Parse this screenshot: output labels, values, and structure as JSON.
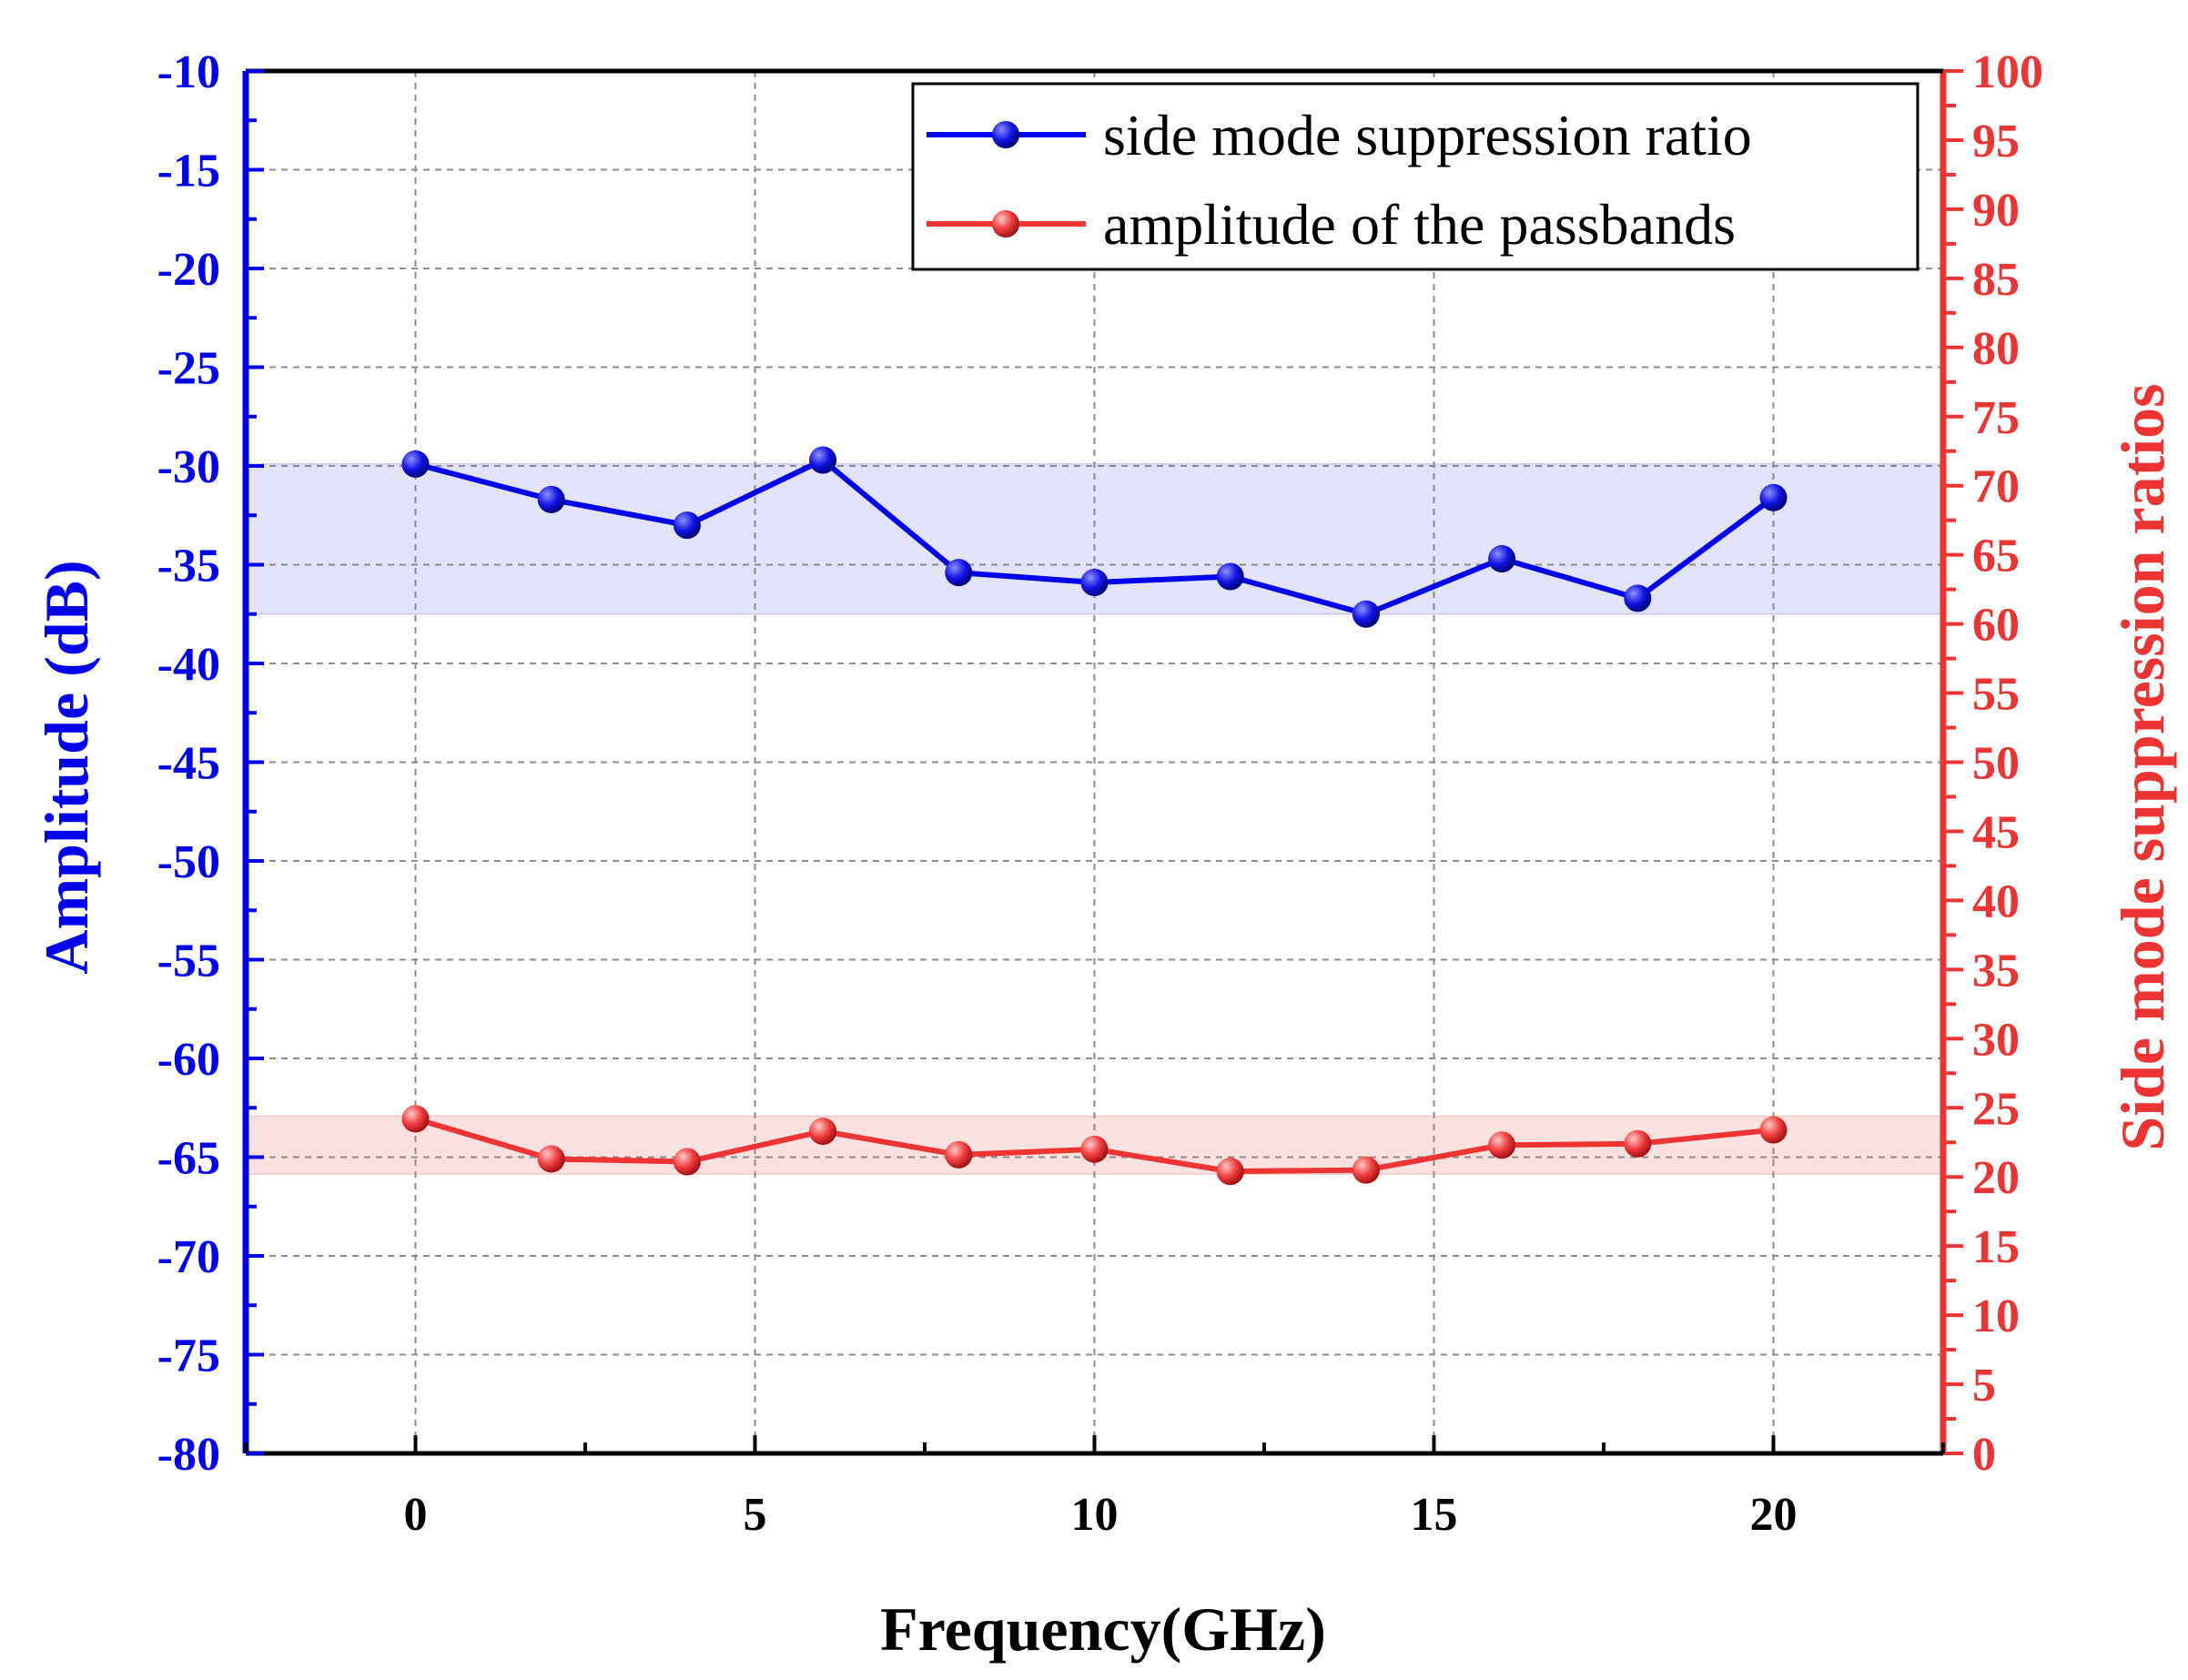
{
  "chart_data": {
    "type": "line",
    "title": "",
    "xlabel": "Frequency(GHz)",
    "ylabel_left": "Amplitude (dB)",
    "ylabel_right": "Side mode suppression ratios",
    "xlim": [
      -2.5,
      22.5
    ],
    "ylim_left": [
      -80,
      -10
    ],
    "ylim_right": [
      0,
      100
    ],
    "x_ticks": [
      "0",
      "5",
      "10",
      "15",
      "20"
    ],
    "y_ticks_left": [
      "-10",
      "-15",
      "-20",
      "-25",
      "-30",
      "-35",
      "-40",
      "-45",
      "-50",
      "-55",
      "-60",
      "-65",
      "-70",
      "-75",
      "-80"
    ],
    "y_ticks_right": [
      "100",
      "95",
      "90",
      "85",
      "80",
      "75",
      "70",
      "65",
      "60",
      "55",
      "50",
      "45",
      "40",
      "35",
      "30",
      "25",
      "20",
      "15",
      "10",
      "5",
      "0"
    ],
    "grid": true,
    "legend_position": "top-right",
    "series": [
      {
        "name": "side mode suppression ratio",
        "color": "#0000ee",
        "axis": "left",
        "x": [
          0,
          2,
          4,
          6,
          8,
          10,
          12,
          14,
          16,
          18,
          20
        ],
        "y": [
          -29.9,
          -31.7,
          -33.0,
          -29.7,
          -35.4,
          -35.9,
          -35.6,
          -37.5,
          -34.7,
          -36.7,
          -31.6
        ],
        "band": [
          -37.5,
          -29.9
        ]
      },
      {
        "name": "amplitude of the passbands",
        "color": "#ee3333",
        "axis": "right",
        "x": [
          0,
          2,
          4,
          6,
          8,
          10,
          12,
          14,
          16,
          18,
          20
        ],
        "y": [
          24.2,
          21.3,
          21.1,
          23.3,
          21.6,
          22.0,
          20.4,
          20.5,
          22.3,
          22.4,
          23.4
        ],
        "band": [
          20.2,
          24.4
        ]
      }
    ]
  }
}
